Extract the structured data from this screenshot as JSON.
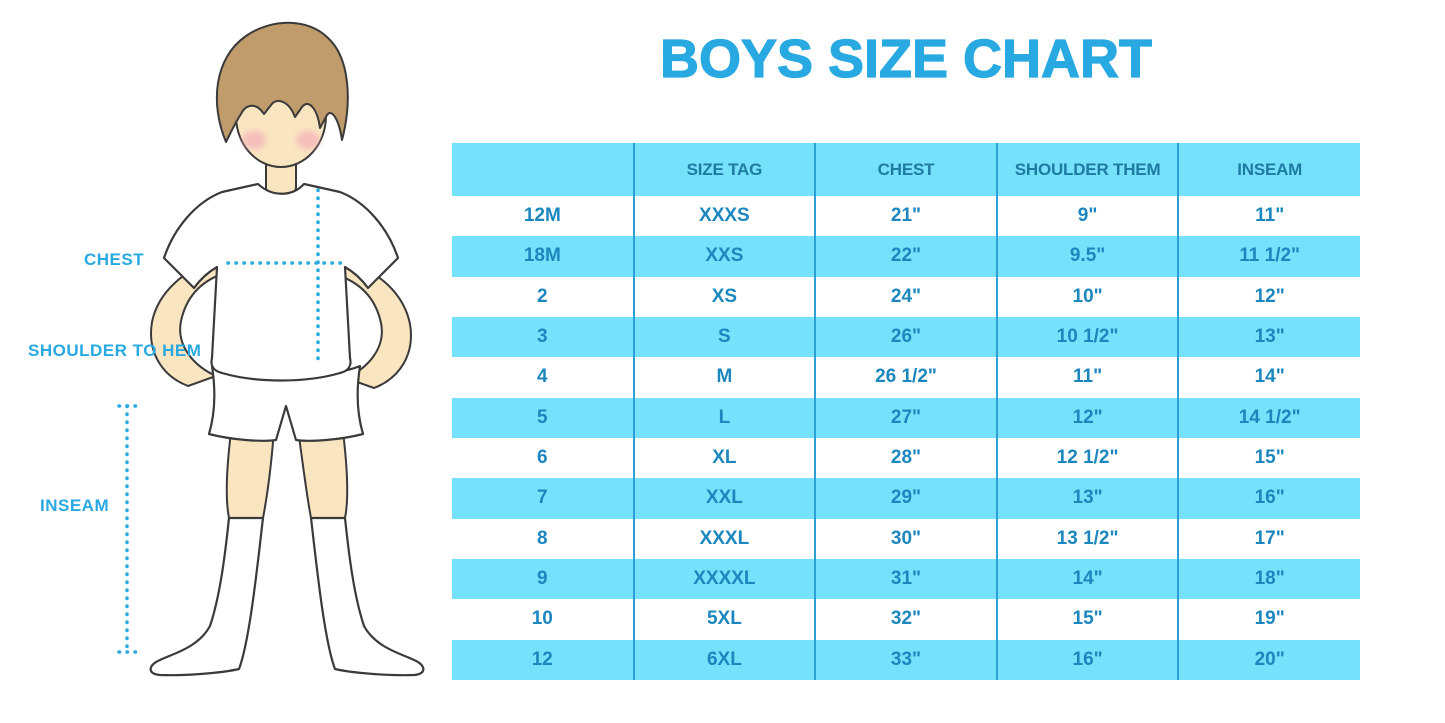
{
  "title": "BOYS SIZE CHART",
  "figure": {
    "labels": {
      "chest": "CHEST",
      "shoulder_to_hem": "SHOULDER TO HEM",
      "inseam": "INSEAM"
    }
  },
  "colors": {
    "accent": "#29A9E1",
    "stripe": "#76E1FA",
    "cell_text": "#1B87BE",
    "header_text": "#1E7BA4",
    "separator": "#2B9FD6",
    "skin": "#FAE5C1",
    "hair": "#C09B6C"
  },
  "chart_data": {
    "type": "table",
    "title": "BOYS SIZE CHART",
    "columns": [
      "",
      "SIZE TAG",
      "CHEST",
      "SHOULDER THEM",
      "INSEAM"
    ],
    "rows": [
      [
        "12M",
        "XXXS",
        "21\"",
        "9\"",
        "11\""
      ],
      [
        "18M",
        "XXS",
        "22\"",
        "9.5\"",
        "11 1/2\""
      ],
      [
        "2",
        "XS",
        "24\"",
        "10\"",
        "12\""
      ],
      [
        "3",
        "S",
        "26\"",
        "10 1/2\"",
        "13\""
      ],
      [
        "4",
        "M",
        "26 1/2\"",
        "11\"",
        "14\""
      ],
      [
        "5",
        "L",
        "27\"",
        "12\"",
        "14 1/2\""
      ],
      [
        "6",
        "XL",
        "28\"",
        "12 1/2\"",
        "15\""
      ],
      [
        "7",
        "XXL",
        "29\"",
        "13\"",
        "16\""
      ],
      [
        "8",
        "XXXL",
        "30\"",
        "13 1/2\"",
        "17\""
      ],
      [
        "9",
        "XXXXL",
        "31\"",
        "14\"",
        "18\""
      ],
      [
        "10",
        "5XL",
        "32\"",
        "15\"",
        "19\""
      ],
      [
        "12",
        "6XL",
        "33\"",
        "16\"",
        "20\""
      ]
    ],
    "layout": {
      "row_striping": "alternating white and light blue starting white",
      "grid": "vertical separators only",
      "legend": "none"
    }
  }
}
